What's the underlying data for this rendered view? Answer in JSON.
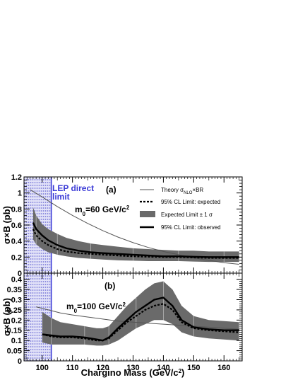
{
  "chart_data": [
    {
      "type": "line",
      "panel_tag": "(a)",
      "annotation_main": "m",
      "annotation_sub": "0",
      "annotation_rest": "=60 GeV/c",
      "annotation_sup": "2",
      "ylabel": "σ×B (pb)",
      "xlim": [
        94,
        166
      ],
      "ylim": [
        0,
        1.2
      ],
      "yticks": [
        "0",
        "0.2",
        "0.4",
        "0.6",
        "0.8",
        "1",
        "1.2"
      ],
      "ytick_values": [
        0,
        0.2,
        0.4,
        0.6,
        0.8,
        1.0,
        1.2
      ],
      "lep_band": {
        "x0": 94,
        "x1": 103,
        "label_line1": "LEP direct",
        "label_line2": "limit",
        "color": "#3b3bd6"
      },
      "legend": {
        "theory_prefix": "Theory σ",
        "theory_sub": "NLO",
        "theory_suffix": "×BR",
        "expected": "95% CL Limit: expected",
        "band": "Expected Limit ± 1 σ",
        "observed": "95% CL Limit: observed"
      },
      "series": [
        {
          "role": "theory",
          "x": [
            96,
            100,
            105,
            110,
            115,
            120,
            125,
            130,
            135,
            140,
            145,
            150,
            155,
            160,
            165
          ],
          "y": [
            1.04,
            0.95,
            0.83,
            0.72,
            0.62,
            0.53,
            0.45,
            0.38,
            0.32,
            0.27,
            0.23,
            0.19,
            0.16,
            0.13,
            0.11
          ]
        },
        {
          "role": "expected",
          "x": [
            97,
            98,
            100,
            102,
            105,
            108,
            112,
            116,
            120,
            125,
            130,
            135,
            140,
            145,
            150,
            155,
            160,
            165
          ],
          "y": [
            0.55,
            0.47,
            0.4,
            0.35,
            0.3,
            0.27,
            0.25,
            0.24,
            0.23,
            0.22,
            0.21,
            0.205,
            0.2,
            0.2,
            0.195,
            0.19,
            0.19,
            0.19
          ]
        },
        {
          "role": "band_upper",
          "x": [
            97,
            98,
            100,
            102,
            105,
            108,
            112,
            116,
            120,
            125,
            130,
            135,
            140,
            145,
            150,
            155,
            160,
            165
          ],
          "y": [
            0.82,
            0.72,
            0.61,
            0.55,
            0.49,
            0.44,
            0.4,
            0.37,
            0.35,
            0.33,
            0.31,
            0.3,
            0.29,
            0.28,
            0.28,
            0.27,
            0.27,
            0.27
          ]
        },
        {
          "role": "band_lower",
          "x": [
            97,
            98,
            100,
            102,
            105,
            108,
            112,
            116,
            120,
            125,
            130,
            135,
            140,
            145,
            150,
            155,
            160,
            165
          ],
          "y": [
            0.42,
            0.36,
            0.3,
            0.26,
            0.23,
            0.21,
            0.19,
            0.18,
            0.17,
            0.16,
            0.155,
            0.15,
            0.15,
            0.15,
            0.145,
            0.14,
            0.14,
            0.14
          ]
        },
        {
          "role": "observed",
          "x": [
            97,
            98,
            100,
            102,
            105,
            108,
            112,
            116,
            120,
            125,
            130,
            135,
            140,
            145,
            150,
            155,
            160,
            165
          ],
          "y": [
            0.63,
            0.55,
            0.47,
            0.41,
            0.35,
            0.31,
            0.28,
            0.26,
            0.25,
            0.24,
            0.23,
            0.22,
            0.21,
            0.21,
            0.205,
            0.2,
            0.2,
            0.2
          ]
        }
      ]
    },
    {
      "type": "line",
      "panel_tag": "(b)",
      "annotation_main": "m",
      "annotation_sub": "0",
      "annotation_rest": "=100 GeV/c",
      "annotation_sup": "2",
      "ylabel": "σ×B (pb)",
      "xlabel_main": "Chargino Mass (GeV/c",
      "xlabel_sup": "2",
      "xlabel_end": ")",
      "xlim": [
        94,
        166
      ],
      "ylim": [
        0,
        0.43
      ],
      "yticks": [
        "0",
        "0.05",
        "0.1",
        "0.15",
        "0.2",
        "0.25",
        "0.3",
        "0.35",
        "0.4"
      ],
      "ytick_values": [
        0,
        0.05,
        0.1,
        0.15,
        0.2,
        0.25,
        0.3,
        0.35,
        0.4
      ],
      "xticks": [
        "100",
        "110",
        "120",
        "130",
        "140",
        "150",
        "160"
      ],
      "xtick_values": [
        100,
        110,
        120,
        130,
        140,
        150,
        160
      ],
      "series": [
        {
          "role": "theory",
          "x": [
            98,
            102,
            106,
            110,
            115,
            120,
            125,
            130,
            135,
            140,
            145,
            150,
            155,
            160,
            165
          ],
          "y": [
            0.265,
            0.25,
            0.235,
            0.225,
            0.215,
            0.205,
            0.195,
            0.19,
            0.185,
            0.18,
            0.175,
            0.17,
            0.165,
            0.16,
            0.155
          ]
        },
        {
          "role": "expected",
          "x": [
            100,
            103,
            106,
            110,
            114,
            118,
            120,
            122,
            125,
            128,
            131,
            134,
            137,
            140,
            143,
            146,
            150,
            155,
            160,
            165
          ],
          "y": [
            0.13,
            0.12,
            0.115,
            0.115,
            0.11,
            0.1,
            0.1,
            0.11,
            0.15,
            0.19,
            0.22,
            0.25,
            0.27,
            0.28,
            0.25,
            0.19,
            0.16,
            0.15,
            0.145,
            0.14
          ]
        },
        {
          "role": "band_upper",
          "x": [
            100,
            103,
            106,
            110,
            114,
            118,
            120,
            122,
            125,
            128,
            131,
            134,
            137,
            140,
            143,
            146,
            150,
            155,
            160,
            165
          ],
          "y": [
            0.24,
            0.21,
            0.19,
            0.18,
            0.17,
            0.16,
            0.16,
            0.17,
            0.22,
            0.27,
            0.31,
            0.35,
            0.38,
            0.39,
            0.35,
            0.27,
            0.22,
            0.2,
            0.195,
            0.19
          ]
        },
        {
          "role": "band_lower",
          "x": [
            100,
            103,
            106,
            110,
            114,
            118,
            120,
            122,
            125,
            128,
            131,
            134,
            137,
            140,
            143,
            146,
            150,
            155,
            160,
            165
          ],
          "y": [
            0.09,
            0.08,
            0.08,
            0.08,
            0.08,
            0.075,
            0.075,
            0.08,
            0.1,
            0.13,
            0.16,
            0.18,
            0.2,
            0.2,
            0.18,
            0.14,
            0.12,
            0.11,
            0.105,
            0.1
          ]
        },
        {
          "role": "observed",
          "x": [
            100,
            103,
            106,
            110,
            114,
            118,
            120,
            122,
            125,
            128,
            131,
            134,
            137,
            140,
            143,
            146,
            150,
            155,
            160,
            165
          ],
          "y": [
            0.13,
            0.125,
            0.12,
            0.12,
            0.115,
            0.105,
            0.1,
            0.115,
            0.16,
            0.2,
            0.24,
            0.27,
            0.3,
            0.31,
            0.27,
            0.2,
            0.165,
            0.155,
            0.15,
            0.15
          ]
        }
      ]
    }
  ],
  "colors": {
    "band": "#6a6a6a",
    "theory": "#555555",
    "lep": "#3b3bd6",
    "lep_fill": "#dcdcf6"
  }
}
